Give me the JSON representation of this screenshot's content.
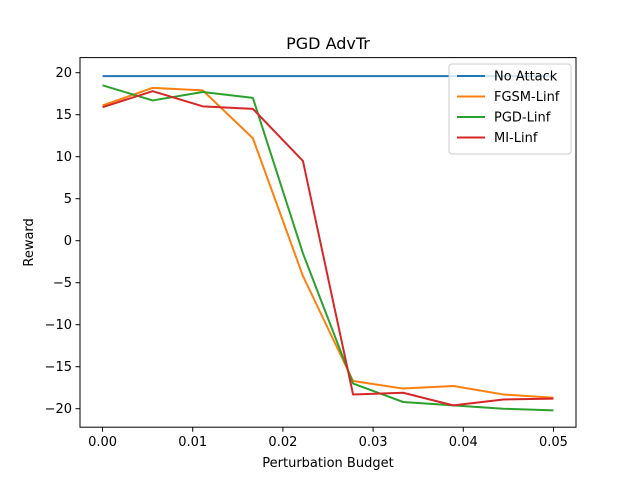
{
  "chart_data": {
    "type": "line",
    "title": "PGD AdvTr",
    "xlabel": "Perturbation Budget",
    "ylabel": "Reward",
    "xlim": [
      -0.0025,
      0.0525
    ],
    "ylim": [
      -22.2,
      21.8
    ],
    "grid": false,
    "legend_position": "top-right",
    "x_ticks": [
      0.0,
      0.01,
      0.02,
      0.03,
      0.04,
      0.05
    ],
    "x_tick_labels": [
      "0.00",
      "0.01",
      "0.02",
      "0.03",
      "0.04",
      "0.05"
    ],
    "y_ticks": [
      -20,
      -15,
      -10,
      -5,
      0,
      5,
      10,
      15,
      20
    ],
    "y_tick_labels": [
      "−20",
      "−15",
      "−10",
      "−5",
      "0",
      "5",
      "10",
      "15",
      "20"
    ],
    "x": [
      0.0,
      0.00556,
      0.01111,
      0.01667,
      0.02222,
      0.02778,
      0.03333,
      0.03889,
      0.04444,
      0.05
    ],
    "series": [
      {
        "name": "No Attack",
        "color": "#1f77b4",
        "values": [
          19.6,
          19.6,
          19.6,
          19.6,
          19.6,
          19.6,
          19.6,
          19.6,
          19.6,
          19.6
        ]
      },
      {
        "name": "FGSM-Linf",
        "color": "#ff7f0e",
        "values": [
          16.1,
          18.2,
          17.9,
          12.2,
          -4.2,
          -16.7,
          -17.6,
          -17.3,
          -18.3,
          -18.7
        ]
      },
      {
        "name": "PGD-Linf",
        "color": "#2ca02c",
        "values": [
          18.5,
          16.7,
          17.7,
          17.0,
          -1.5,
          -17.0,
          -19.2,
          -19.6,
          -20.0,
          -20.2
        ]
      },
      {
        "name": "MI-Linf",
        "color": "#d62728",
        "values": [
          15.9,
          17.8,
          16.0,
          15.7,
          9.5,
          -18.3,
          -18.1,
          -19.6,
          -18.9,
          -18.8
        ]
      }
    ]
  }
}
